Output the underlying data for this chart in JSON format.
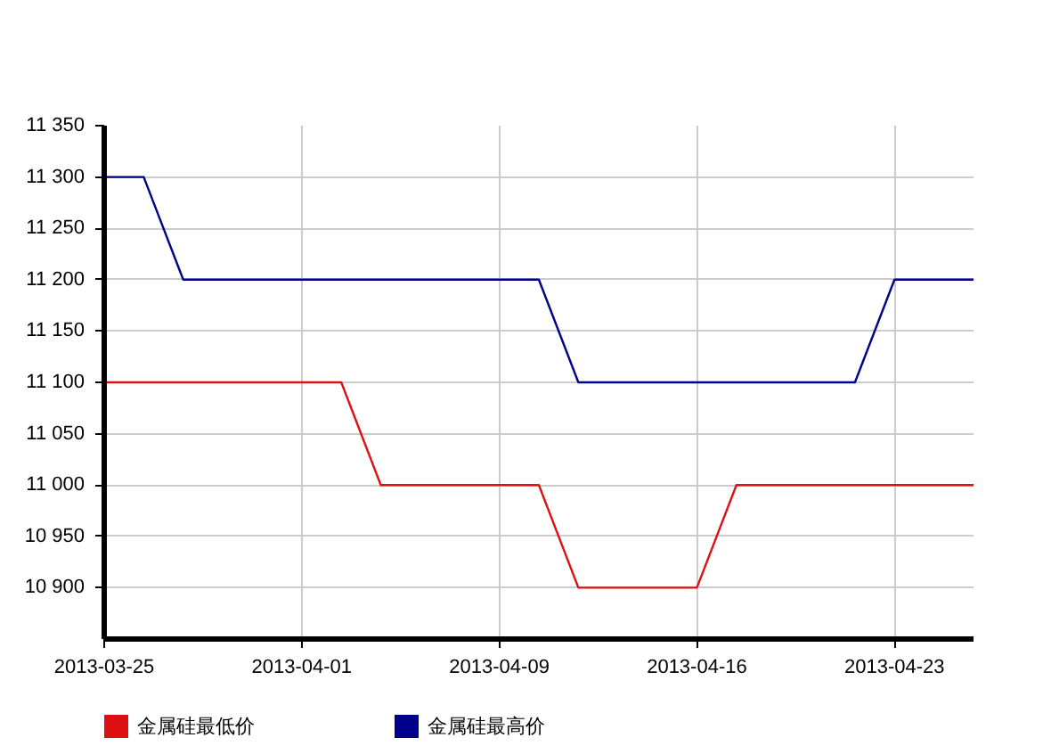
{
  "chart_data": {
    "type": "line",
    "categories": [
      "2013-03-25",
      null,
      null,
      null,
      null,
      "2013-04-01",
      null,
      null,
      null,
      null,
      "2013-04-09",
      null,
      null,
      null,
      null,
      "2013-04-16",
      null,
      null,
      null,
      null,
      "2013-04-23",
      null,
      null
    ],
    "series": [
      {
        "name": "金属硅最低价",
        "color": "#dd1111",
        "values": [
          11100,
          11100,
          11100,
          11100,
          11100,
          11100,
          11100,
          11000,
          11000,
          11000,
          11000,
          11000,
          10900,
          10900,
          10900,
          10900,
          11000,
          11000,
          11000,
          11000,
          11000,
          11000,
          11000
        ]
      },
      {
        "name": "金属硅最高价",
        "color": "#00008b",
        "values": [
          11300,
          11300,
          11200,
          11200,
          11200,
          11200,
          11200,
          11200,
          11200,
          11200,
          11200,
          11200,
          11100,
          11100,
          11100,
          11100,
          11100,
          11100,
          11100,
          11100,
          11200,
          11200,
          11200
        ]
      }
    ],
    "ylim": [
      10850,
      11350
    ],
    "yticks": [
      {
        "value": 10900,
        "label": "10 900"
      },
      {
        "value": 10950,
        "label": "10 950"
      },
      {
        "value": 11000,
        "label": "11 000"
      },
      {
        "value": 11050,
        "label": "11 050"
      },
      {
        "value": 11100,
        "label": "11 100"
      },
      {
        "value": 11150,
        "label": "11 150"
      },
      {
        "value": 11200,
        "label": "11 200"
      },
      {
        "value": 11250,
        "label": "11 250"
      },
      {
        "value": 11300,
        "label": "11 300"
      },
      {
        "value": 11350,
        "label": "11 350"
      }
    ],
    "grid": true,
    "legend": "bottom",
    "marker": "none",
    "line_style": "solid"
  }
}
